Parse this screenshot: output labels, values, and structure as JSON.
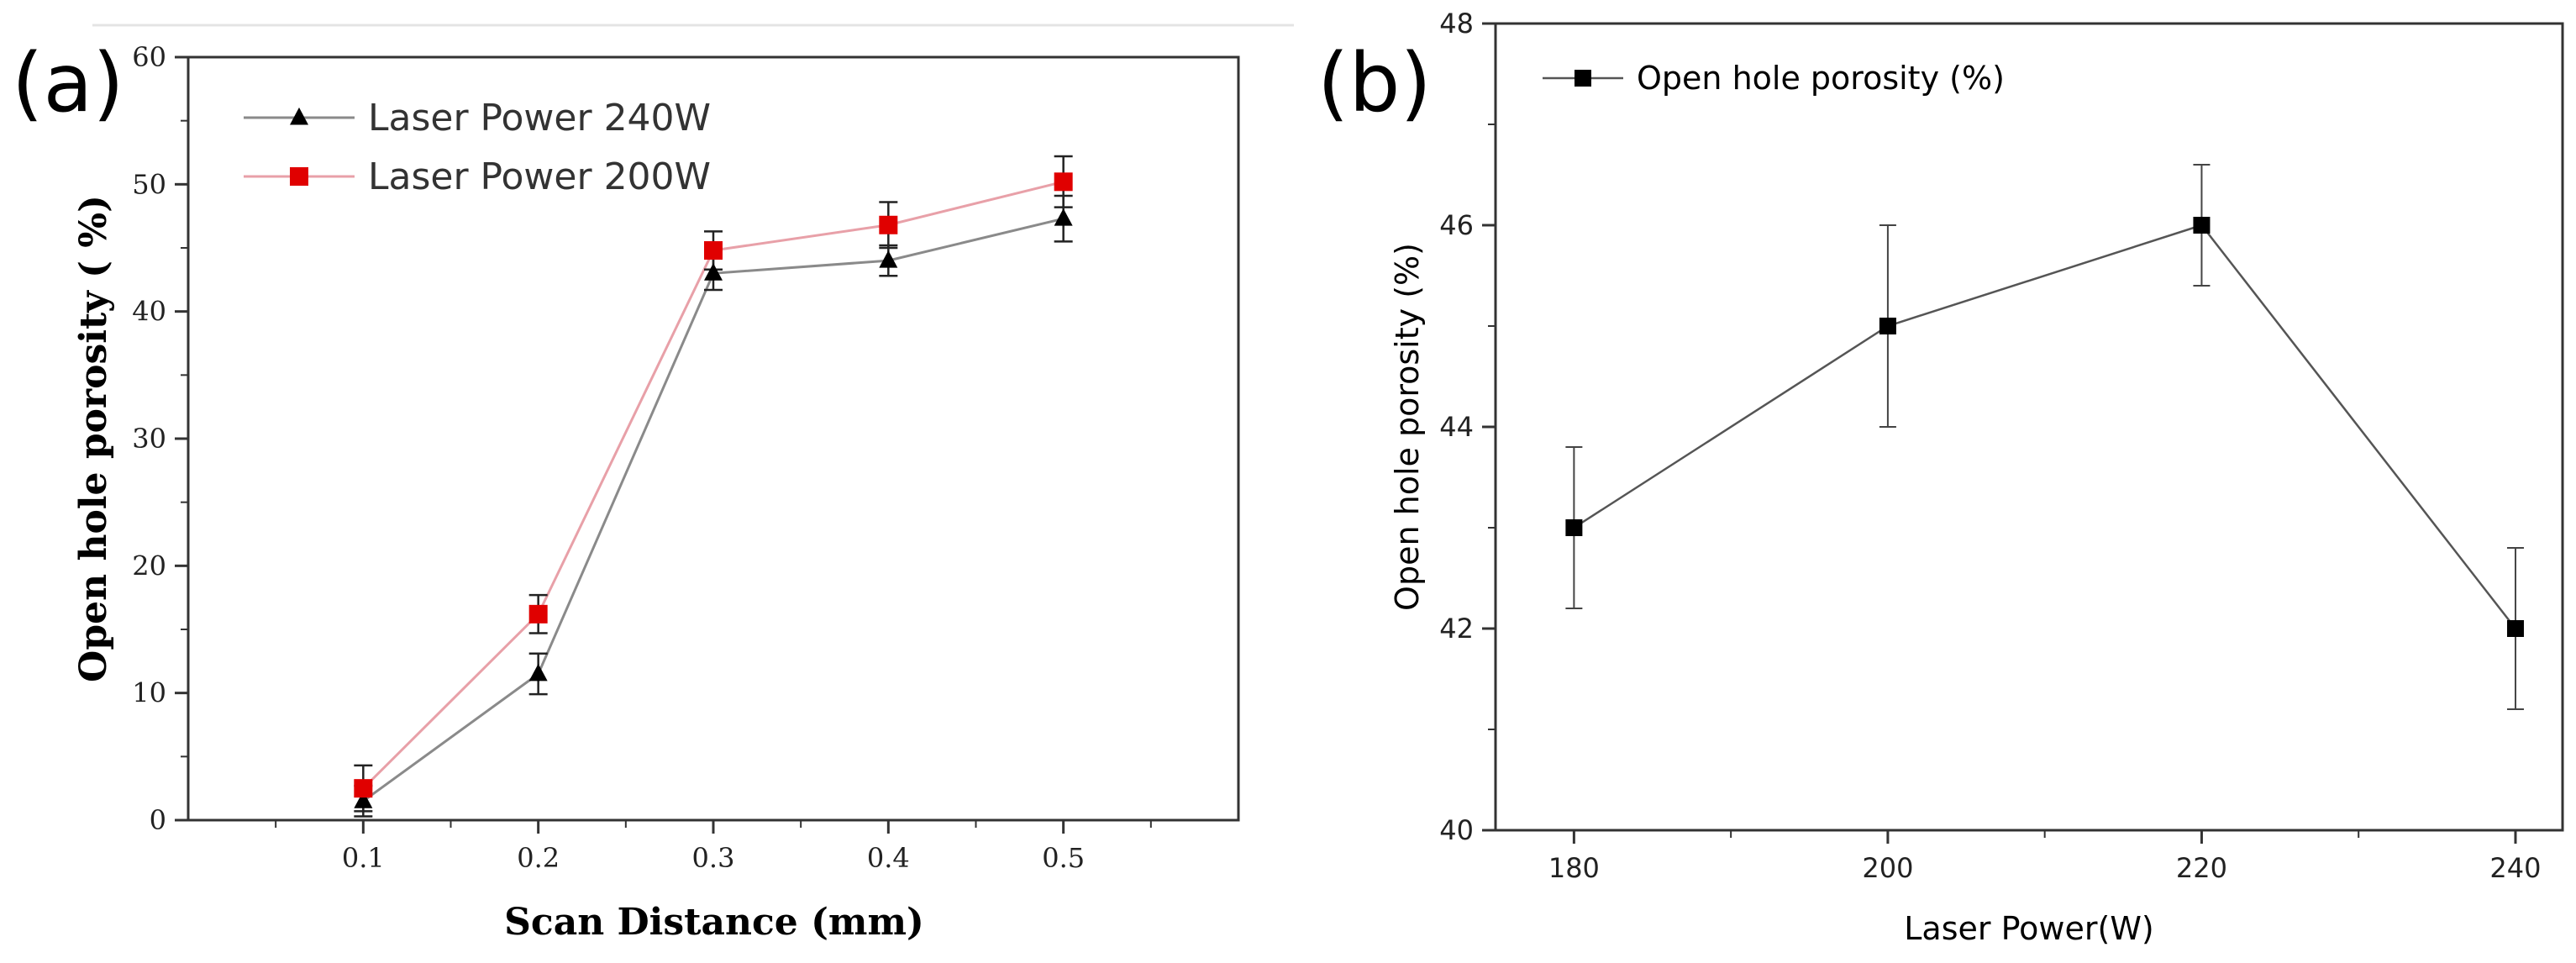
{
  "chart_data": [
    {
      "panel_label": "(a)",
      "type": "line",
      "title": "",
      "xlabel": "Scan Distance (mm)",
      "ylabel": "Open hole porosity ( %)",
      "categories": [
        "0.1",
        "0.2",
        "0.3",
        "0.4",
        "0.5"
      ],
      "x": [
        0.1,
        0.2,
        0.3,
        0.4,
        0.5
      ],
      "xlim": [
        0.0,
        0.6
      ],
      "ylim": [
        0,
        60
      ],
      "yticks": [
        "0",
        "10",
        "20",
        "30",
        "40",
        "50",
        "60"
      ],
      "legend": "top-left",
      "series": [
        {
          "name": "Laser Power 240W",
          "marker": "triangle",
          "line_color": "#8a8a8a",
          "marker_color": "#000000",
          "values": [
            1.5,
            11.5,
            43.0,
            44.0,
            47.3
          ],
          "errors": [
            1.2,
            1.6,
            1.3,
            1.2,
            1.8
          ]
        },
        {
          "name": "Laser Power 200W",
          "marker": "square",
          "line_color": "#e8a0a8",
          "marker_color": "#e00000",
          "values": [
            2.5,
            16.2,
            44.8,
            46.8,
            50.2
          ],
          "errors": [
            1.8,
            1.5,
            1.5,
            1.8,
            2.0
          ]
        }
      ]
    },
    {
      "panel_label": "(b)",
      "type": "line",
      "title": "",
      "xlabel": "Laser Power(W)",
      "ylabel": "Open hole porosity (%)",
      "categories": [
        "180",
        "200",
        "220",
        "240"
      ],
      "x": [
        180,
        200,
        220,
        240
      ],
      "xlim": [
        175,
        243
      ],
      "ylim": [
        40,
        48
      ],
      "yticks": [
        "40",
        "42",
        "44",
        "46",
        "48"
      ],
      "legend": "top-left",
      "series": [
        {
          "name": "Open hole porosity (%)",
          "marker": "square",
          "line_color": "#555555",
          "marker_color": "#000000",
          "values": [
            43.0,
            45.0,
            46.0,
            42.0
          ],
          "errors": [
            0.8,
            1.0,
            0.6,
            0.8
          ]
        }
      ]
    }
  ]
}
